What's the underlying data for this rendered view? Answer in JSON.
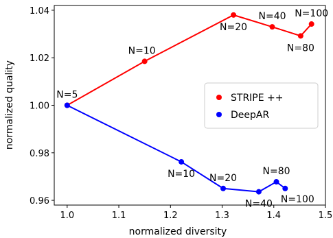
{
  "chart_data": {
    "type": "line",
    "title": "",
    "xlabel": "normalized diversity",
    "ylabel": "normalized quality",
    "xlim": [
      0.975,
      1.5
    ],
    "ylim": [
      0.958,
      1.042
    ],
    "xticks": [
      1.0,
      1.1,
      1.2,
      1.3,
      1.4,
      1.5
    ],
    "xtick_labels": [
      "1.0",
      "1.1",
      "1.2",
      "1.3",
      "1.4",
      "1.5"
    ],
    "yticks": [
      0.96,
      0.98,
      1.0,
      1.02,
      1.04
    ],
    "ytick_labels": [
      "0.96",
      "0.98",
      "1.00",
      "1.02",
      "1.04"
    ],
    "grid": false,
    "legend_position": "center-right",
    "series": [
      {
        "name": "STRIPE ++",
        "color": "#ff0000",
        "points": [
          {
            "x": 1.0,
            "y": 1.0,
            "label": "N=5",
            "label_pos": "above"
          },
          {
            "x": 1.15,
            "y": 1.0185,
            "label": "N=10",
            "label_pos": "above-left"
          },
          {
            "x": 1.322,
            "y": 1.038,
            "label": "N=20",
            "label_pos": "below"
          },
          {
            "x": 1.397,
            "y": 1.033,
            "label": "N=40",
            "label_pos": "above"
          },
          {
            "x": 1.452,
            "y": 1.0292,
            "label": "N=80",
            "label_pos": "below"
          },
          {
            "x": 1.473,
            "y": 1.0342,
            "label": "N=100",
            "label_pos": "above"
          }
        ]
      },
      {
        "name": "DeepAR",
        "color": "#0000ff",
        "points": [
          {
            "x": 1.0,
            "y": 1.0,
            "label": "",
            "label_pos": "none"
          },
          {
            "x": 1.221,
            "y": 0.9762,
            "label": "N=10",
            "label_pos": "below"
          },
          {
            "x": 1.302,
            "y": 0.965,
            "label": "N=20",
            "label_pos": "above"
          },
          {
            "x": 1.371,
            "y": 0.9636,
            "label": "N=40",
            "label_pos": "below"
          },
          {
            "x": 1.405,
            "y": 0.9678,
            "label": "N=80",
            "label_pos": "above"
          },
          {
            "x": 1.422,
            "y": 0.965,
            "label": "N=100",
            "label_pos": "below-right"
          }
        ]
      }
    ]
  }
}
